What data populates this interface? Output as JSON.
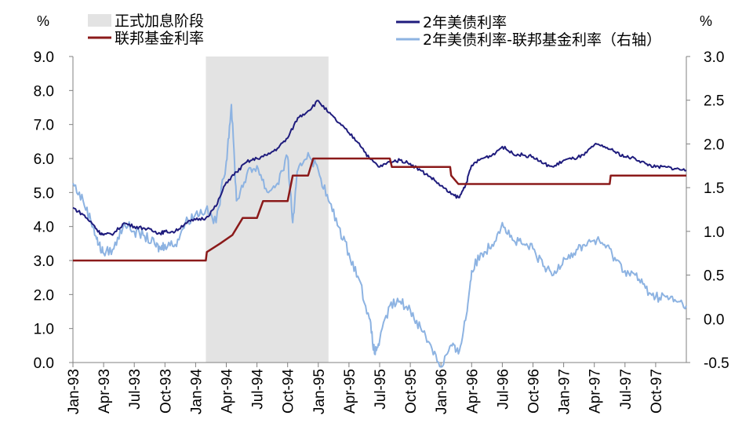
{
  "chart_data": {
    "type": "line",
    "title": "",
    "left_axis": {
      "unit": "%",
      "ylim": [
        0,
        9
      ],
      "ticks": [
        "0.0",
        "1.0",
        "2.0",
        "3.0",
        "4.0",
        "5.0",
        "6.0",
        "7.0",
        "8.0",
        "9.0"
      ]
    },
    "right_axis": {
      "unit": "%",
      "ylim": [
        -0.5,
        3.0
      ],
      "ticks": [
        "-0.5",
        "0.0",
        "0.5",
        "1.0",
        "1.5",
        "2.0",
        "2.5",
        "3.0"
      ],
      "negative_tick_color": "#ff0000"
    },
    "x_axis": {
      "start": "1993-01",
      "end": "1997-12",
      "ticks": [
        "Jan-93",
        "Apr-93",
        "Jul-93",
        "Oct-93",
        "Jan-94",
        "Apr-94",
        "Jul-94",
        "Oct-94",
        "Jan-95",
        "Apr-95",
        "Jul-95",
        "Oct-95",
        "Jan-96",
        "Apr-96",
        "Jul-96",
        "Oct-96",
        "Jan-97",
        "Apr-97",
        "Jul-97",
        "Oct-97"
      ],
      "tick_months": [
        0,
        3,
        6,
        9,
        12,
        15,
        18,
        21,
        24,
        27,
        30,
        33,
        36,
        39,
        42,
        45,
        48,
        51,
        54,
        57
      ],
      "label_rotation": -90
    },
    "shaded_region": {
      "name": "正式加息阶段",
      "from_month": 13,
      "to_month": 25,
      "color": "#e3e3e3"
    },
    "legend_placement": "top",
    "series": [
      {
        "name": "联邦基金利率",
        "axis": "left",
        "color": "#8b1a1a",
        "step": true,
        "points": [
          [
            0,
            3.0
          ],
          [
            13,
            3.0
          ],
          [
            13.1,
            3.25
          ],
          [
            14.4,
            3.5
          ],
          [
            15.6,
            3.75
          ],
          [
            16.6,
            4.25
          ],
          [
            18,
            4.25
          ],
          [
            18.6,
            4.75
          ],
          [
            21,
            4.75
          ],
          [
            21.5,
            5.5
          ],
          [
            23,
            5.5
          ],
          [
            23.5,
            6.0
          ],
          [
            25,
            6.0
          ],
          [
            25.1,
            6.0
          ],
          [
            31,
            6.0
          ],
          [
            31.2,
            5.75
          ],
          [
            36.9,
            5.75
          ],
          [
            37,
            5.5
          ],
          [
            37.7,
            5.25
          ],
          [
            52.5,
            5.25
          ],
          [
            52.6,
            5.5
          ],
          [
            60,
            5.5
          ]
        ]
      },
      {
        "name": "2年美债利率",
        "axis": "left",
        "color": "#1f1c7d",
        "points": [
          [
            0,
            4.55
          ],
          [
            1,
            4.35
          ],
          [
            2,
            4.05
          ],
          [
            2.5,
            3.85
          ],
          [
            3,
            3.75
          ],
          [
            4,
            3.8
          ],
          [
            5,
            4.1
          ],
          [
            6,
            4.0
          ],
          [
            7,
            3.95
          ],
          [
            8,
            3.85
          ],
          [
            8.5,
            3.8
          ],
          [
            9,
            3.85
          ],
          [
            10,
            3.85
          ],
          [
            11,
            4.1
          ],
          [
            12,
            4.2
          ],
          [
            13,
            4.25
          ],
          [
            14,
            4.6
          ],
          [
            15,
            5.3
          ],
          [
            16,
            5.6
          ],
          [
            17,
            5.9
          ],
          [
            18,
            6.0
          ],
          [
            19,
            6.1
          ],
          [
            20,
            6.3
          ],
          [
            21,
            6.6
          ],
          [
            22,
            7.2
          ],
          [
            23,
            7.4
          ],
          [
            24,
            7.7
          ],
          [
            25,
            7.35
          ],
          [
            26,
            7.05
          ],
          [
            27,
            6.75
          ],
          [
            28,
            6.45
          ],
          [
            29,
            6.0
          ],
          [
            30,
            5.75
          ],
          [
            31,
            5.9
          ],
          [
            32,
            5.95
          ],
          [
            33,
            5.85
          ],
          [
            34,
            5.65
          ],
          [
            35,
            5.45
          ],
          [
            36,
            5.2
          ],
          [
            37,
            4.95
          ],
          [
            37.8,
            4.85
          ],
          [
            38.5,
            5.3
          ],
          [
            39,
            5.8
          ],
          [
            40,
            6.0
          ],
          [
            41,
            6.1
          ],
          [
            42,
            6.35
          ],
          [
            43,
            6.15
          ],
          [
            44,
            6.1
          ],
          [
            45,
            6.05
          ],
          [
            46,
            5.85
          ],
          [
            47,
            5.75
          ],
          [
            48,
            5.95
          ],
          [
            49,
            6.0
          ],
          [
            50,
            6.1
          ],
          [
            51,
            6.4
          ],
          [
            52,
            6.35
          ],
          [
            53,
            6.2
          ],
          [
            54,
            6.05
          ],
          [
            55,
            6.0
          ],
          [
            56,
            5.85
          ],
          [
            57,
            5.75
          ],
          [
            58,
            5.75
          ],
          [
            59,
            5.7
          ],
          [
            60,
            5.65
          ]
        ]
      },
      {
        "name": "2年美债利率-联邦基金利率（右轴）",
        "axis": "right",
        "color": "#8db3e2",
        "points": [
          [
            0,
            1.55
          ],
          [
            1,
            1.35
          ],
          [
            2,
            1.05
          ],
          [
            2.5,
            0.85
          ],
          [
            3,
            0.75
          ],
          [
            4,
            0.8
          ],
          [
            5,
            1.1
          ],
          [
            6,
            1.0
          ],
          [
            7,
            0.95
          ],
          [
            8,
            0.85
          ],
          [
            8.5,
            0.8
          ],
          [
            9,
            0.85
          ],
          [
            10,
            0.85
          ],
          [
            11,
            1.1
          ],
          [
            12,
            1.2
          ],
          [
            13,
            1.25
          ],
          [
            14,
            1.1
          ],
          [
            15,
            1.8
          ],
          [
            15.5,
            2.45
          ],
          [
            16,
            1.35
          ],
          [
            17,
            1.65
          ],
          [
            18,
            1.75
          ],
          [
            19,
            1.45
          ],
          [
            20,
            1.55
          ],
          [
            21,
            1.85
          ],
          [
            21.5,
            1.1
          ],
          [
            22,
            1.7
          ],
          [
            23,
            1.9
          ],
          [
            24,
            1.7
          ],
          [
            25,
            1.35
          ],
          [
            26,
            1.05
          ],
          [
            27,
            0.75
          ],
          [
            28,
            0.45
          ],
          [
            29,
            0.0
          ],
          [
            29.5,
            -0.4
          ],
          [
            30,
            -0.25
          ],
          [
            31,
            0.15
          ],
          [
            32,
            0.2
          ],
          [
            33,
            0.1
          ],
          [
            34,
            -0.1
          ],
          [
            35,
            -0.3
          ],
          [
            36,
            -0.55
          ],
          [
            37,
            -0.3
          ],
          [
            37.7,
            -0.4
          ],
          [
            38.5,
            0.05
          ],
          [
            39,
            0.55
          ],
          [
            40,
            0.75
          ],
          [
            41,
            0.85
          ],
          [
            42,
            1.1
          ],
          [
            43,
            0.9
          ],
          [
            44,
            0.85
          ],
          [
            45,
            0.8
          ],
          [
            46,
            0.6
          ],
          [
            47,
            0.5
          ],
          [
            48,
            0.7
          ],
          [
            49,
            0.75
          ],
          [
            50,
            0.85
          ],
          [
            51,
            0.9
          ],
          [
            52,
            0.85
          ],
          [
            53,
            0.7
          ],
          [
            54,
            0.55
          ],
          [
            55,
            0.5
          ],
          [
            56,
            0.35
          ],
          [
            57,
            0.25
          ],
          [
            58,
            0.25
          ],
          [
            59,
            0.2
          ],
          [
            60,
            0.15
          ]
        ]
      }
    ]
  }
}
